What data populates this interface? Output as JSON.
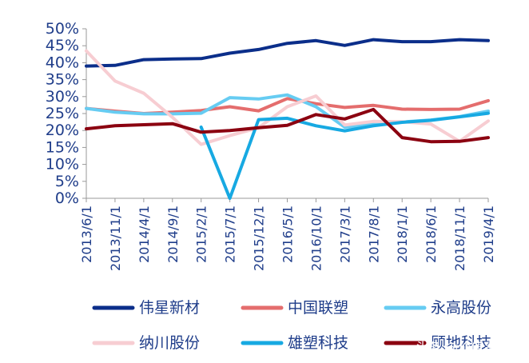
{
  "chart_data": {
    "type": "line",
    "title": "",
    "xlabel": "",
    "ylabel": "",
    "ylim": [
      0,
      50
    ],
    "y_ticks": [
      "0%",
      "5%",
      "10%",
      "15%",
      "20%",
      "25%",
      "30%",
      "35%",
      "40%",
      "45%",
      "50%"
    ],
    "grid": false,
    "legend_position": "bottom",
    "categories": [
      "2013/6/1",
      "2013/11/1",
      "2014/4/1",
      "2014/9/1",
      "2015/2/1",
      "2015/7/1",
      "2015/12/1",
      "2016/5/1",
      "2016/10/1",
      "2017/3/1",
      "2017/8/1",
      "2018/1/1",
      "2018/6/1",
      "2018/11/1",
      "2019/4/1"
    ],
    "series": [
      {
        "name": "伟星新材",
        "color": "#0b2e8a",
        "values": [
          39.0,
          39.2,
          40.9,
          41.1,
          41.2,
          42.8,
          43.9,
          45.7,
          46.5,
          45.1,
          46.8,
          46.2,
          46.2,
          46.8,
          46.5
        ]
      },
      {
        "name": "中国联塑",
        "color": "#e46d6d",
        "values": [
          26.5,
          25.7,
          25.0,
          25.4,
          25.9,
          27.0,
          25.8,
          29.4,
          27.9,
          26.8,
          27.4,
          26.3,
          26.2,
          26.3,
          28.8
        ]
      },
      {
        "name": "永高股份",
        "color": "#66ccf2",
        "values": [
          26.5,
          25.4,
          24.9,
          24.9,
          25.1,
          29.7,
          29.3,
          30.5,
          27.0,
          21.0,
          21.9,
          22.5,
          23.1,
          24.1,
          25.7
        ]
      },
      {
        "name": "纳川股份",
        "color": "#f7cdd2",
        "values": [
          43.5,
          34.6,
          31.0,
          23.9,
          15.9,
          18.5,
          20.8,
          27.0,
          30.2,
          21.6,
          22.7,
          22.6,
          21.9,
          16.8,
          22.8
        ]
      },
      {
        "name": "雄塑科技",
        "color": "#17a9e2",
        "values": [
          null,
          null,
          null,
          null,
          21.0,
          0.0,
          23.2,
          23.6,
          21.4,
          19.9,
          21.4,
          22.4,
          23.0,
          24.0,
          25.1
        ]
      },
      {
        "name": "顾地科技",
        "color": "#8b0010",
        "values": [
          20.5,
          21.4,
          21.7,
          22.0,
          19.5,
          20.0,
          20.8,
          21.5,
          24.7,
          23.4,
          26.2,
          17.9,
          16.7,
          16.8,
          17.9
        ]
      }
    ]
  },
  "watermark": "头条 @价值事务所"
}
